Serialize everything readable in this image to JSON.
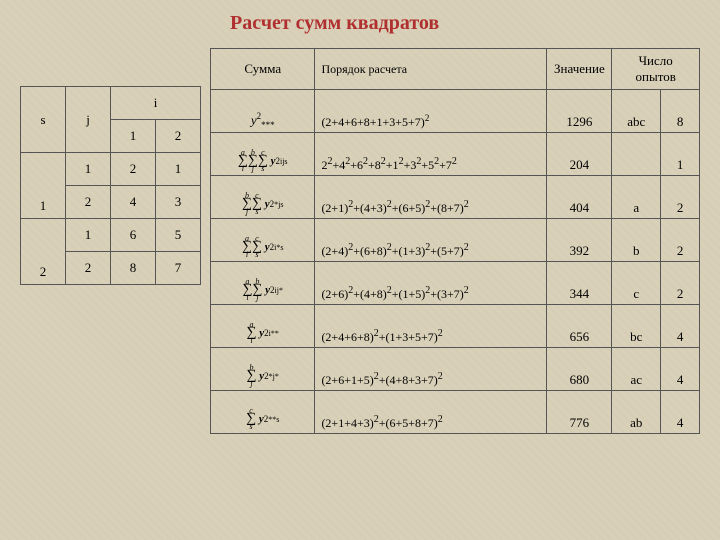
{
  "title": "Расчет сумм квадратов",
  "left": {
    "hdr_i": "i",
    "hdr_s": "s",
    "hdr_j": "j",
    "hdr_1": "1",
    "hdr_2": "2",
    "rows": [
      {
        "s": "",
        "j": "1",
        "i1": "2",
        "i2": "1"
      },
      {
        "s": "1",
        "j": "2",
        "i1": "4",
        "i2": "3"
      },
      {
        "s": "",
        "j": "1",
        "i1": "6",
        "i2": "5"
      },
      {
        "s": "2",
        "j": "2",
        "i1": "8",
        "i2": "7"
      }
    ]
  },
  "right": {
    "headers": {
      "sum": "Сумма",
      "calc": "Порядок расчета",
      "val": "Значение",
      "exp": "Число опытов"
    },
    "rows": [
      {
        "sum_kind": "y2stars",
        "sum_raw": "y²***",
        "calc": "(2+4+6+8+1+3+5+7)",
        "calc_sup": "2",
        "val": "1296",
        "exp": "abc",
        "n": "8"
      },
      {
        "sum_kind": "sigma",
        "sigmas": [
          [
            "a",
            "i"
          ],
          [
            "b",
            "j"
          ],
          [
            "c",
            "s"
          ]
        ],
        "sub": "ijs",
        "calc_html": "2<sup>2</sup>+4<sup>2</sup>+6<sup>2</sup>+8<sup>2</sup>+1<sup>2</sup>+3<sup>2</sup>+5<sup>2</sup>+7<sup>2</sup>",
        "val": "204",
        "exp": "",
        "n": "1"
      },
      {
        "sum_kind": "sigma",
        "sigmas": [
          [
            "b",
            "j"
          ],
          [
            "c",
            "s"
          ]
        ],
        "sub": "*js",
        "calc_html": "(2+1)<sup>2</sup>+(4+3)<sup>2</sup>+(6+5)<sup>2</sup>+(8+7)<sup>2</sup>",
        "val": "404",
        "exp": "a",
        "n": "2"
      },
      {
        "sum_kind": "sigma",
        "sigmas": [
          [
            "a",
            "i"
          ],
          [
            "c",
            "s"
          ]
        ],
        "sub": "i*s",
        "calc_html": "(2+4)<sup>2</sup>+(6+8)<sup>2</sup>+(1+3)<sup>2</sup>+(5+7)<sup>2</sup>",
        "val": "392",
        "exp": "b",
        "n": "2"
      },
      {
        "sum_kind": "sigma",
        "sigmas": [
          [
            "a",
            "i"
          ],
          [
            "b",
            "j"
          ]
        ],
        "sub": "ij*",
        "calc_html": "(2+6)<sup>2</sup>+(4+8)<sup>2</sup>+(1+5)<sup>2</sup>+(3+7)<sup>2</sup>",
        "val": "344",
        "exp": "c",
        "n": "2"
      },
      {
        "sum_kind": "sigma",
        "sigmas": [
          [
            "a",
            "i"
          ]
        ],
        "sub": "i**",
        "calc_html": "(2+4+6+8)<sup>2</sup>+(1+3+5+7)<sup>2</sup>",
        "val": "656",
        "exp": "bc",
        "n": "4"
      },
      {
        "sum_kind": "sigma",
        "sigmas": [
          [
            "b",
            "j"
          ]
        ],
        "sub": "*j*",
        "calc_html": "(2+6+1+5)<sup>2</sup>+(4+8+3+7)<sup>2</sup>",
        "val": "680",
        "exp": "ac",
        "n": "4"
      },
      {
        "sum_kind": "sigma",
        "sigmas": [
          [
            "c",
            "s"
          ]
        ],
        "sub": "**s",
        "calc_html": "(2+1+4+3)<sup>2</sup>+(6+5+8+7)<sup>2</sup>",
        "val": "776",
        "exp": "ab",
        "n": "4"
      }
    ]
  },
  "colors": {
    "title": "#b03030",
    "border": "#555555",
    "bg": "#d8d0b8"
  }
}
